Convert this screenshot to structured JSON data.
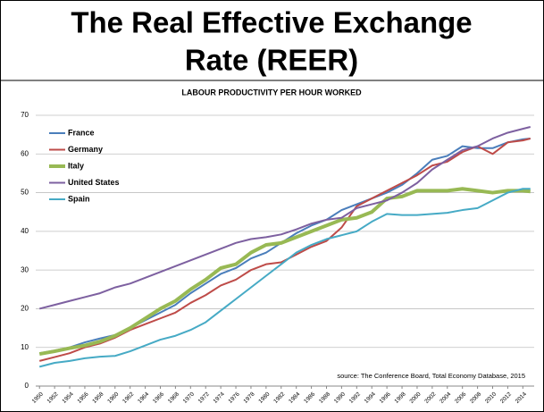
{
  "slide_title": [
    "The Real Effective Exchange",
    "Rate  (REER)"
  ],
  "chart_data": {
    "type": "line",
    "title": "LABOUR PRODUCTIVITY PER HOUR WORKED",
    "annotation": "source:  The Conference Board, Total Economy Database, 2015",
    "x": [
      1950,
      1952,
      1954,
      1956,
      1958,
      1960,
      1962,
      1964,
      1966,
      1968,
      1970,
      1972,
      1974,
      1976,
      1978,
      1980,
      1982,
      1984,
      1986,
      1988,
      1990,
      1992,
      1994,
      1996,
      1998,
      2000,
      2002,
      2004,
      2006,
      2008,
      2010,
      2012,
      2014,
      2015
    ],
    "xlim": [
      1949.5,
      2015.5
    ],
    "xticks": [
      1950,
      1952,
      1954,
      1956,
      1958,
      1960,
      1962,
      1964,
      1966,
      1968,
      1970,
      1972,
      1974,
      1976,
      1978,
      1980,
      1982,
      1984,
      1986,
      1988,
      1990,
      1992,
      1994,
      1996,
      1998,
      2000,
      2002,
      2004,
      2006,
      2008,
      2010,
      2012,
      2014
    ],
    "ylim": [
      0,
      70
    ],
    "yticks": [
      0,
      10,
      20,
      30,
      40,
      50,
      60,
      70
    ],
    "grid": true,
    "legend": "top-left",
    "series": [
      {
        "name": "France",
        "color": "#4a7ebb",
        "line_width": 2,
        "values": [
          8.5,
          9.2,
          10,
          11.3,
          12.3,
          13.2,
          15,
          17,
          19,
          21,
          24,
          26.5,
          29,
          30.5,
          33,
          34.5,
          37,
          39.5,
          41.5,
          43,
          45.5,
          47,
          48.5,
          50,
          52,
          55,
          58.5,
          59.5,
          62,
          61.5,
          61.5,
          63,
          63.8,
          64
        ]
      },
      {
        "name": "Germany",
        "color": "#be4b48",
        "line_width": 2,
        "values": [
          6.5,
          7.5,
          8.5,
          10,
          11,
          12.5,
          14.5,
          16,
          17.5,
          19,
          21.5,
          23.5,
          26,
          27.5,
          30,
          31.5,
          32,
          34,
          36,
          37.5,
          41,
          46.5,
          48.5,
          50.5,
          52.5,
          54.5,
          57,
          58,
          60.5,
          62,
          60,
          63,
          63.5,
          64
        ]
      },
      {
        "name": "Italy",
        "color": "#98b954",
        "line_width": 4,
        "values": [
          8.3,
          9,
          9.8,
          10.5,
          11.5,
          13,
          15,
          17.5,
          20,
          22,
          25,
          27.5,
          30.5,
          31.5,
          34.5,
          36.5,
          37,
          38.5,
          40,
          41.5,
          43,
          43.5,
          45,
          48.5,
          49,
          50.5,
          50.5,
          50.5,
          51,
          50.5,
          50,
          50.5,
          50.5,
          50.3
        ]
      },
      {
        "name": "United States",
        "color": "#7d60a0",
        "line_width": 2,
        "values": [
          20,
          21,
          22,
          23,
          24,
          25.5,
          26.5,
          28,
          29.5,
          31,
          32.5,
          34,
          35.5,
          37,
          38,
          38.5,
          39.2,
          40.5,
          42,
          43,
          43.5,
          46,
          47,
          48,
          50,
          52.5,
          56,
          58.5,
          61,
          62,
          64,
          65.5,
          66.5,
          67
        ]
      },
      {
        "name": "Spain",
        "color": "#46aac5",
        "line_width": 2,
        "values": [
          5,
          6,
          6.5,
          7.2,
          7.6,
          7.8,
          9,
          10.5,
          12,
          13,
          14.5,
          16.5,
          19.5,
          22.5,
          25.5,
          28.5,
          31.5,
          34.5,
          36.5,
          38,
          39,
          40,
          42.5,
          44.5,
          44.2,
          44.2,
          44.5,
          44.8,
          45.5,
          46,
          48,
          50,
          51,
          51
        ]
      }
    ]
  }
}
